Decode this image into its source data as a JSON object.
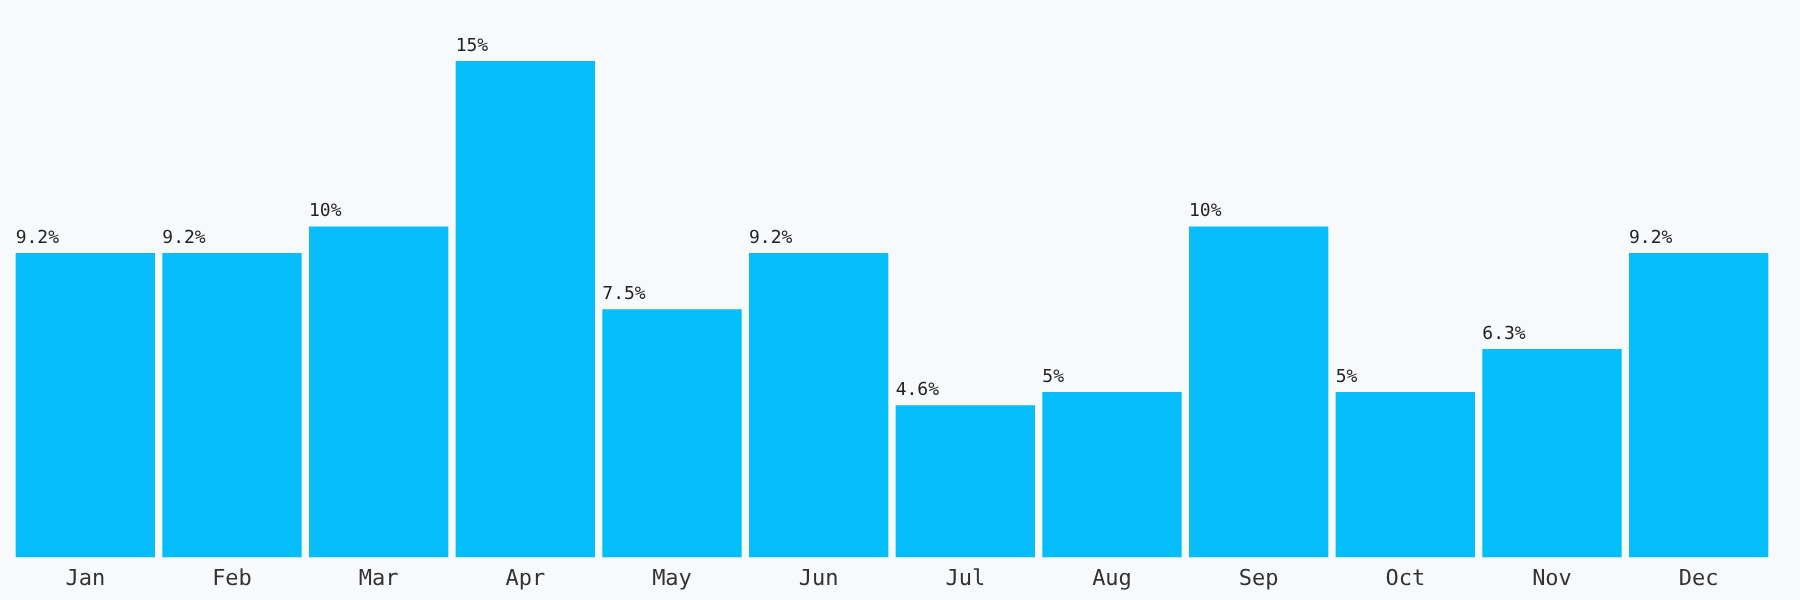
{
  "chart_data": {
    "type": "bar",
    "categories": [
      "Jan",
      "Feb",
      "Mar",
      "Apr",
      "May",
      "Jun",
      "Jul",
      "Aug",
      "Sep",
      "Oct",
      "Nov",
      "Dec"
    ],
    "values": [
      9.2,
      9.2,
      10,
      15,
      7.5,
      9.2,
      4.6,
      5,
      10,
      5,
      6.3,
      9.2
    ],
    "value_labels": [
      "9.2%",
      "9.2%",
      "10%",
      "15%",
      "7.5%",
      "9.2%",
      "4.6%",
      "5%",
      "10%",
      "5%",
      "6.3%",
      "9.2%"
    ],
    "color": "#05bdf9",
    "grid": false,
    "legend": false
  }
}
